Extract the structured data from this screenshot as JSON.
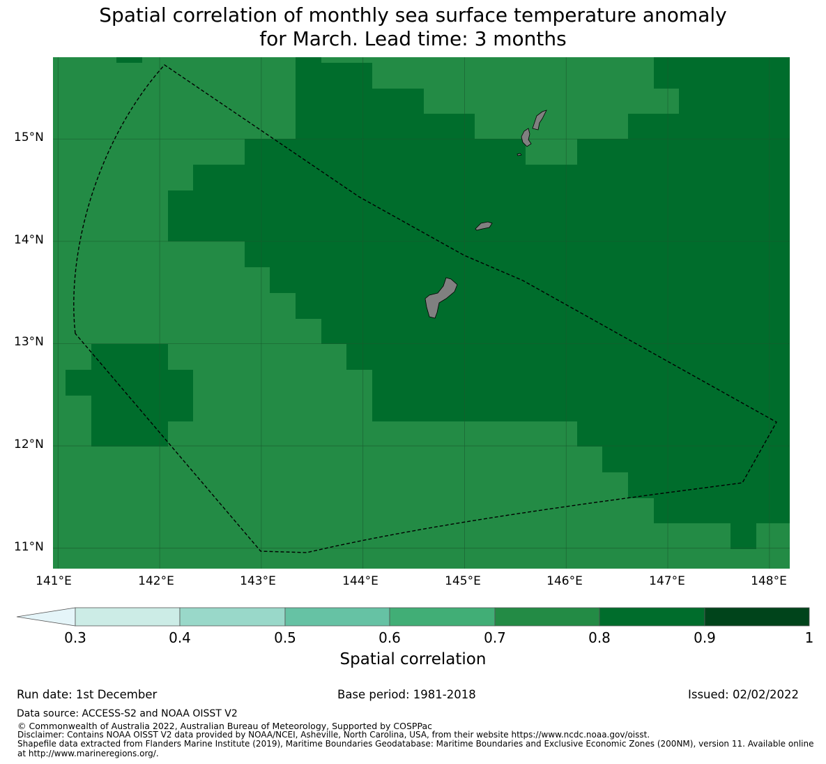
{
  "title": {
    "line1": "Spatial correlation of monthly sea surface temperature anomaly",
    "line2": "for March. Lead time: 3 months"
  },
  "map": {
    "lon_range": [
      140.95,
      148.2
    ],
    "lat_range": [
      10.8,
      15.8
    ],
    "x_ticks": [
      "141°E",
      "142°E",
      "143°E",
      "144°E",
      "145°E",
      "146°E",
      "147°E",
      "148°E"
    ],
    "y_ticks": [
      "15°N",
      "14°N",
      "13°N",
      "12°N",
      "11°N"
    ],
    "colors": {
      "class_0.7_0.8": "#238b45",
      "class_0.8_0.9": "#006d2c",
      "land": "#808080",
      "gridline": "#1a5a2e",
      "boundary": "#000000"
    }
  },
  "colorbar": {
    "bounds": [
      "0.3",
      "0.4",
      "0.5",
      "0.6",
      "0.7",
      "0.8",
      "0.9",
      "1"
    ],
    "colors": [
      "#ccece6",
      "#99d8c9",
      "#66c2a4",
      "#41ae76",
      "#238b45",
      "#006d2c",
      "#00441b"
    ],
    "extend_color": "#e5f5f9",
    "label": "Spatial correlation"
  },
  "footer": {
    "run_date": "Run date: 1st December",
    "base_period": "Base period: 1981-2018",
    "issued": "Issued: 02/02/2022",
    "data_source": "Data source: ACCESS-S2 and NOAA OISST V2",
    "copyright": "© Commonwealth of Australia 2022, Australian Bureau of Meteorology, Supported by COSPPac",
    "disclaimer": "Disclaimer: Contains NOAA OISST V2 data provided by NOAA/NCEI, Asheville, North Carolina, USA, from their website https://www.ncdc.noaa.gov/oisst.",
    "shapefile_1": "Shapefile data extracted from Flanders Marine Institute (2019), Maritime Boundaries Geodatabase: Maritime Boundaries and Exclusive Economic Zones (200NM), version 11. Available online",
    "shapefile_2": "at http://www.marineregions.org/."
  }
}
